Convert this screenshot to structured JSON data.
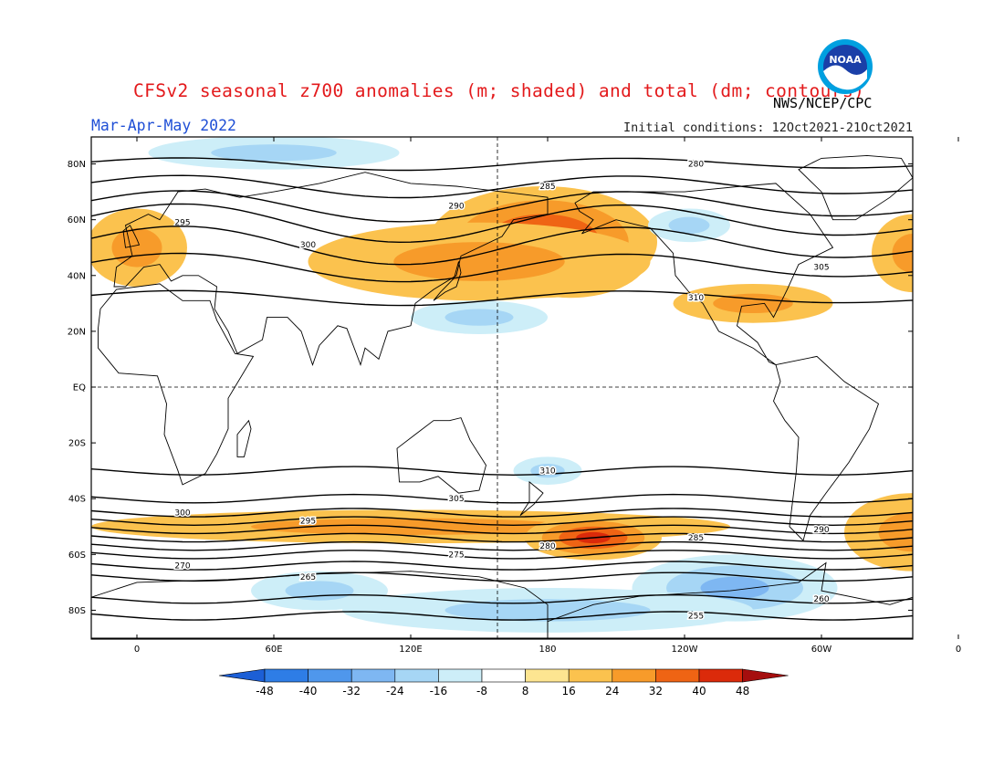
{
  "header": {
    "title": "CFSv2 seasonal z700 anomalies (m; shaded) and total (dm; contours)",
    "source": "NWS/NCEP/CPC",
    "season": "Mar-Apr-May 2022",
    "initial_conditions": "Initial conditions: 12Oct2021-21Oct2021",
    "logo_text": "NOAA"
  },
  "map": {
    "lat_range": [
      -90,
      90
    ],
    "lon_start": -20,
    "lon_end": 340,
    "lat_ticks": [
      {
        "lat": 80,
        "label": "80N"
      },
      {
        "lat": 60,
        "label": "60N"
      },
      {
        "lat": 40,
        "label": "40N"
      },
      {
        "lat": 20,
        "label": "20N"
      },
      {
        "lat": 0,
        "label": "EQ"
      },
      {
        "lat": -20,
        "label": "20S"
      },
      {
        "lat": -40,
        "label": "40S"
      },
      {
        "lat": -60,
        "label": "60S"
      },
      {
        "lat": -80,
        "label": "80S"
      }
    ],
    "lon_ticks": [
      {
        "lon": 0,
        "label": "0"
      },
      {
        "lon": 60,
        "label": "60E"
      },
      {
        "lon": 120,
        "label": "120E"
      },
      {
        "lon": 180,
        "label": "180"
      },
      {
        "lon": 240,
        "label": "120W"
      },
      {
        "lon": 300,
        "label": "60W"
      },
      {
        "lon": 360,
        "label": "0"
      }
    ],
    "anomaly_blobs": [
      {
        "lon": 190,
        "lat": 48,
        "rlon": 35,
        "rlat": 16,
        "value": 44
      },
      {
        "lon": 178,
        "lat": 52,
        "rlon": 50,
        "rlat": 20,
        "value": 28
      },
      {
        "lon": 150,
        "lat": 45,
        "rlon": 75,
        "rlat": 14,
        "value": 14
      },
      {
        "lon": 0,
        "lat": 50,
        "rlon": 22,
        "rlat": 14,
        "value": 12
      },
      {
        "lon": 340,
        "lat": 48,
        "rlon": 18,
        "rlat": 14,
        "value": 12
      },
      {
        "lon": 270,
        "lat": 30,
        "rlon": 35,
        "rlat": 7,
        "value": 12
      },
      {
        "lon": 60,
        "lat": 84,
        "rlon": 55,
        "rlat": 6,
        "value": -10
      },
      {
        "lon": 150,
        "lat": 25,
        "rlon": 30,
        "rlat": 6,
        "value": -10
      },
      {
        "lon": 242,
        "lat": 58,
        "rlon": 18,
        "rlat": 6,
        "value": -10
      },
      {
        "lon": 120,
        "lat": -50,
        "rlon": 140,
        "rlat": 6,
        "value": 14
      },
      {
        "lon": 200,
        "lat": -54,
        "rlon": 30,
        "rlat": 8,
        "value": 26
      },
      {
        "lon": 340,
        "lat": -52,
        "rlon": 30,
        "rlat": 14,
        "value": 14
      },
      {
        "lon": 262,
        "lat": -72,
        "rlon": 45,
        "rlat": 12,
        "value": -16
      },
      {
        "lon": 180,
        "lat": -80,
        "rlon": 90,
        "rlat": 8,
        "value": -10
      },
      {
        "lon": 80,
        "lat": -73,
        "rlon": 30,
        "rlat": 7,
        "value": -10
      },
      {
        "lon": 180,
        "lat": -30,
        "rlon": 15,
        "rlat": 5,
        "value": -10
      }
    ],
    "contours": [
      {
        "label": "280",
        "base": 80
      },
      {
        "label": "285",
        "base": 72
      },
      {
        "label": "290",
        "base": 65
      },
      {
        "label": "295",
        "base": 59
      },
      {
        "label": "300",
        "base": 51
      },
      {
        "label": "305",
        "base": 43
      },
      {
        "label": "310",
        "base": 32
      },
      {
        "label": "310",
        "base": -30
      },
      {
        "label": "305",
        "base": -40
      },
      {
        "label": "300",
        "base": -45
      },
      {
        "label": "295",
        "base": -48
      },
      {
        "label": "290",
        "base": -51
      },
      {
        "label": "285",
        "base": -54
      },
      {
        "label": "280",
        "base": -57
      },
      {
        "label": "275",
        "base": -60
      },
      {
        "label": "270",
        "base": -64
      },
      {
        "label": "265",
        "base": -68
      },
      {
        "label": "260",
        "base": -76
      },
      {
        "label": "255",
        "base": -82
      }
    ]
  },
  "colorbar": {
    "labels": [
      "-48",
      "-40",
      "-32",
      "-24",
      "-16",
      "-8",
      "8",
      "16",
      "24",
      "32",
      "40",
      "48"
    ],
    "colors": [
      "#1c5fd6",
      "#2e7de6",
      "#4f97ec",
      "#7eb7f2",
      "#a6d6f5",
      "#cdeef8",
      "#ffffff",
      "#fde591",
      "#fbc24e",
      "#f79b2a",
      "#ef6414",
      "#db2a0a",
      "#a50e0e"
    ]
  }
}
